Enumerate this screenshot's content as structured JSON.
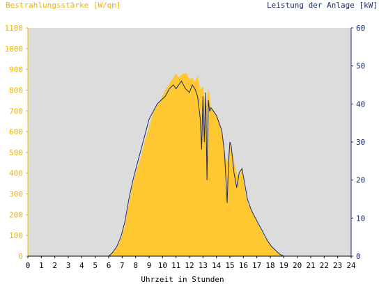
{
  "chart_data": {
    "type": "area",
    "title_left": "Bestrahlungsstärke [W/qm]",
    "title_right": "Leistung der Anlage [kW]",
    "xlabel": "Uhrzeit in Stunden",
    "xlim": [
      0,
      24
    ],
    "ylim_left": [
      0,
      1100
    ],
    "ylim_right": [
      0,
      60
    ],
    "x_ticks": [
      "0",
      "1",
      "2",
      "3",
      "4",
      "5",
      "6",
      "7",
      "8",
      "9",
      "10",
      "11",
      "12",
      "13",
      "14",
      "15",
      "16",
      "17",
      "18",
      "19",
      "20",
      "21",
      "22",
      "23",
      "24"
    ],
    "y_left_ticks": [
      "0",
      "100",
      "200",
      "300",
      "400",
      "500",
      "600",
      "700",
      "800",
      "900",
      "1000",
      "1100"
    ],
    "y_right_ticks": [
      "0",
      "10",
      "20",
      "30",
      "40",
      "50",
      "60"
    ],
    "grid": false,
    "background": "#dcdcdc",
    "colors": {
      "irradiance": "#ffc832",
      "power": "#1a2a6c",
      "left_axis": "#f0b400",
      "right_axis": "#1a2a6c"
    },
    "series": [
      {
        "axis": "left",
        "style": "area",
        "x": [
          0,
          6.0,
          6.3,
          6.6,
          6.9,
          7.2,
          7.5,
          7.8,
          8.1,
          8.4,
          8.7,
          9.0,
          9.3,
          9.6,
          9.9,
          10.2,
          10.5,
          10.8,
          11.0,
          11.2,
          11.5,
          11.8,
          12.0,
          12.2,
          12.4,
          12.6,
          12.8,
          13.0,
          13.2,
          13.4,
          13.6,
          13.8,
          14.0,
          14.2,
          14.4,
          14.6,
          14.8,
          15.0,
          15.1,
          15.3,
          15.5,
          15.7,
          15.9,
          16.1,
          16.3,
          16.6,
          16.9,
          17.2,
          17.5,
          17.8,
          18.1,
          18.4,
          18.7,
          19.0,
          24
        ],
        "y": [
          0,
          0,
          20,
          45,
          80,
          150,
          250,
          350,
          420,
          480,
          560,
          620,
          690,
          730,
          760,
          800,
          830,
          860,
          880,
          860,
          880,
          880,
          850,
          860,
          840,
          870,
          800,
          820,
          700,
          810,
          720,
          700,
          680,
          650,
          600,
          500,
          450,
          540,
          520,
          460,
          400,
          380,
          430,
          320,
          260,
          220,
          180,
          140,
          100,
          70,
          45,
          25,
          10,
          0,
          0
        ]
      },
      {
        "axis": "right",
        "style": "line",
        "x": [
          0,
          6.0,
          6.3,
          6.6,
          6.9,
          7.2,
          7.5,
          7.8,
          8.1,
          8.4,
          8.7,
          9.0,
          9.3,
          9.6,
          9.9,
          10.2,
          10.5,
          10.8,
          11.0,
          11.2,
          11.4,
          11.7,
          12.0,
          12.2,
          12.4,
          12.6,
          12.8,
          12.9,
          13.0,
          13.1,
          13.2,
          13.3,
          13.4,
          13.5,
          13.6,
          13.8,
          14.0,
          14.2,
          14.4,
          14.6,
          14.8,
          14.9,
          15.0,
          15.1,
          15.3,
          15.5,
          15.7,
          15.9,
          16.1,
          16.3,
          16.6,
          16.9,
          17.2,
          17.5,
          17.8,
          18.1,
          18.4,
          18.7,
          19.0,
          24
        ],
        "y": [
          0,
          0,
          1,
          2.5,
          5,
          9,
          15,
          20,
          24,
          28,
          32,
          36,
          38,
          40,
          41,
          42,
          44,
          45,
          44,
          45,
          46,
          44,
          43,
          45,
          44,
          42,
          36,
          28,
          42,
          30,
          43,
          20,
          41,
          38,
          39,
          38,
          37,
          35,
          33,
          27,
          14,
          25,
          30,
          29,
          22,
          18,
          22,
          23,
          19,
          15,
          12,
          10,
          8,
          6,
          4,
          2.5,
          1.5,
          0.5,
          0,
          0
        ]
      }
    ]
  }
}
